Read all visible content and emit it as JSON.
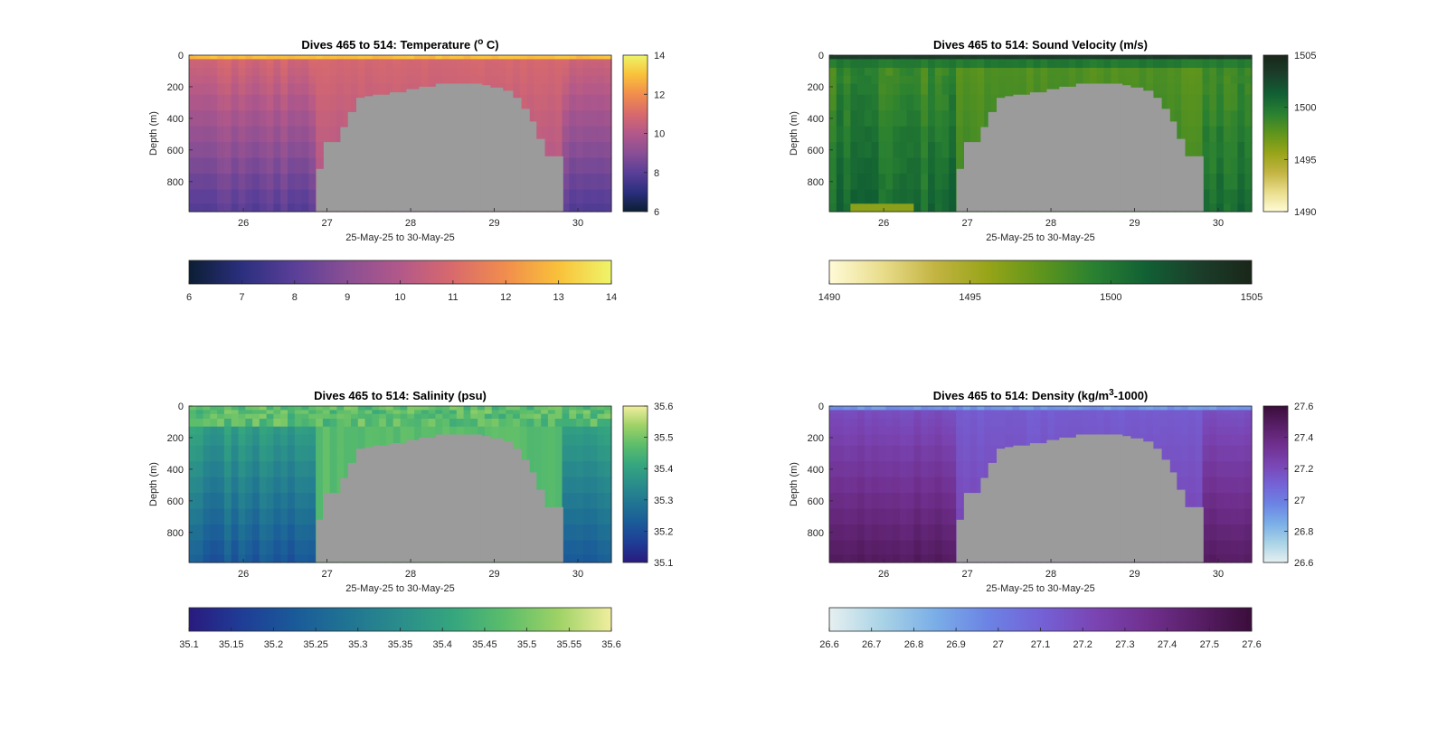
{
  "chart_data": [
    {
      "type": "heatmap",
      "title_main": "Dives 465 to 514: Temperature (",
      "title_sup": "o",
      "title_tail": " C)",
      "xlabel": "25-May-25 to 30-May-25",
      "ylabel": "Depth (m)",
      "xlim": [
        25.35,
        30.4
      ],
      "ylim": [
        0,
        990
      ],
      "x_ticks": [
        "26",
        "27",
        "28",
        "29",
        "30"
      ],
      "y_ticks": [
        "0",
        "200",
        "400",
        "600",
        "800"
      ],
      "field": "temperature",
      "clim": [
        6,
        14
      ],
      "colorbar_ticks": [
        "6",
        "8",
        "10",
        "12",
        "14"
      ],
      "h_colorbar_ticks": [
        "6",
        "7",
        "8",
        "9",
        "10",
        "11",
        "12",
        "13",
        "14"
      ],
      "colormap": [
        "#0b1e33",
        "#2b2f7e",
        "#5a3f98",
        "#8a4f94",
        "#b2588a",
        "#d96a6c",
        "#f18d4d",
        "#f9c13a",
        "#eef569"
      ],
      "data_values": {
        "surface": 13,
        "upper": 10.8,
        "deep": 8.2,
        "mode": "warm_upper"
      }
    },
    {
      "type": "heatmap",
      "title_main": "Dives 465 to 514: Sound Velocity (m/s)",
      "xlabel": "25-May-25 to 30-May-25",
      "ylabel": "Depth (m)",
      "xlim": [
        25.35,
        30.4
      ],
      "ylim": [
        0,
        990
      ],
      "x_ticks": [
        "26",
        "27",
        "28",
        "29",
        "30"
      ],
      "y_ticks": [
        "0",
        "200",
        "400",
        "600",
        "800"
      ],
      "field": "sound_velocity",
      "clim": [
        1490,
        1505
      ],
      "colorbar_ticks": [
        "1490",
        "1495",
        "1500",
        "1505"
      ],
      "h_colorbar_ticks": [
        "1490",
        "1495",
        "1500",
        "1505"
      ],
      "colormap": [
        "#fffbd6",
        "#e9dd8c",
        "#c3b442",
        "#97a418",
        "#5f951c",
        "#2a8131",
        "#116034",
        "#1b3e2a",
        "#1a2619"
      ],
      "data_values": {
        "surface": 1503,
        "upper": 1498.5,
        "deep": 1500.5,
        "mode": "sound"
      }
    },
    {
      "type": "heatmap",
      "title_main": "Dives 465 to 514: Salinity (psu)",
      "xlabel": "25-May-25 to 30-May-25",
      "ylabel": "Depth (m)",
      "xlim": [
        25.35,
        30.4
      ],
      "ylim": [
        0,
        990
      ],
      "x_ticks": [
        "26",
        "27",
        "28",
        "29",
        "30"
      ],
      "y_ticks": [
        "0",
        "200",
        "400",
        "600",
        "800"
      ],
      "field": "salinity",
      "clim": [
        35.1,
        35.6
      ],
      "colorbar_ticks": [
        "35.1",
        "35.2",
        "35.3",
        "35.4",
        "35.5",
        "35.6"
      ],
      "h_colorbar_ticks": [
        "35.1",
        "35.15",
        "35.2",
        "35.25",
        "35.3",
        "35.35",
        "35.4",
        "35.45",
        "35.5",
        "35.55",
        "35.6"
      ],
      "colormap": [
        "#291a7e",
        "#1f3d96",
        "#1a5a99",
        "#207493",
        "#2a8d8b",
        "#35a67e",
        "#5cbd6a",
        "#9ed266",
        "#f1ee9e"
      ],
      "data_values": {
        "surface": 35.45,
        "upper": 35.5,
        "deep": 35.25,
        "mode": "salinity"
      }
    },
    {
      "type": "heatmap",
      "title_main": "Dives 465 to 514: Density (kg/m",
      "title_sup": "3",
      "title_tail": "-1000)",
      "xlabel": "25-May-25 to 30-May-25",
      "ylabel": "Depth (m)",
      "xlim": [
        25.35,
        30.4
      ],
      "ylim": [
        0,
        990
      ],
      "x_ticks": [
        "26",
        "27",
        "28",
        "29",
        "30"
      ],
      "y_ticks": [
        "0",
        "200",
        "400",
        "600",
        "800"
      ],
      "field": "density",
      "clim": [
        26.6,
        27.6
      ],
      "colorbar_ticks": [
        "26.6",
        "26.8",
        "27",
        "27.2",
        "27.4",
        "27.6"
      ],
      "h_colorbar_ticks": [
        "26.6",
        "26.7",
        "26.8",
        "26.9",
        "27",
        "27.1",
        "27.2",
        "27.3",
        "27.4",
        "27.5",
        "27.6"
      ],
      "colormap": [
        "#e6f0f0",
        "#a9d3e6",
        "#7aaee7",
        "#6c83e4",
        "#7462d6",
        "#7a45b4",
        "#70308f",
        "#581e66",
        "#3a0d3a"
      ],
      "data_values": {
        "surface": 26.85,
        "upper": 27.15,
        "deep": 27.42,
        "mode": "density"
      }
    }
  ],
  "seafloor_color": "#9b9b9b"
}
